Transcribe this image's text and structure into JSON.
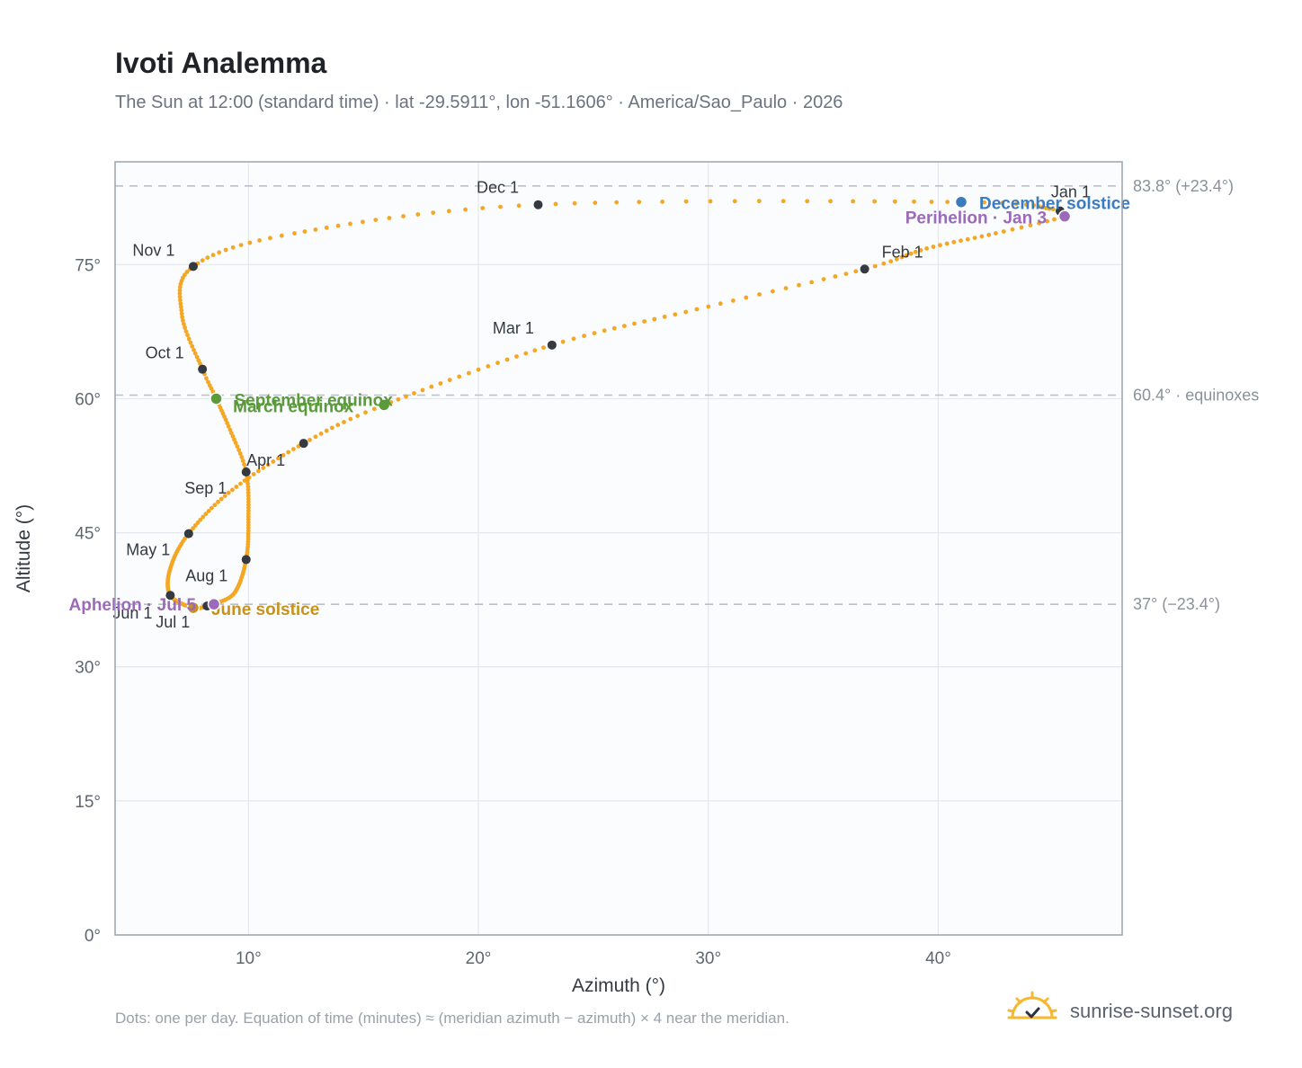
{
  "header": {
    "title": "Ivoti Analemma",
    "subtitle": "The Sun at 12:00 (standard time) · lat -29.5911°, lon -51.1606° · America/Sao_Paulo · 2026"
  },
  "footer": {
    "note": "Dots: one per day. Equation of time (minutes) ≈ (meridian azimuth − azimuth) × 4 near the meridian.",
    "brand": "sunrise-sunset.org",
    "brand_icon": "sun-check-icon"
  },
  "colors": {
    "curve": "#f5a623",
    "month_marker": "#343a40",
    "equinox": "#5a9a3a",
    "december_solstice": "#3b7bbf",
    "june_solstice": "#c8921a",
    "apsis": "#9b6ab8",
    "plot_bg": "#fafcfe",
    "grid": "#e3e8ee",
    "reference_line": "#b9c0c8"
  },
  "chart_data": {
    "type": "scatter",
    "xlabel": "Azimuth (°)",
    "ylabel": "Altitude (°)",
    "xlim": [
      4.2,
      48
    ],
    "ylim": [
      0,
      86.5
    ],
    "x_ticks": [
      10,
      20,
      30,
      40
    ],
    "x_tick_labels": [
      "10°",
      "20°",
      "30°",
      "40°"
    ],
    "y_ticks": [
      0,
      15,
      30,
      45,
      60,
      75
    ],
    "y_tick_labels": [
      "0°",
      "15°",
      "30°",
      "45°",
      "60°",
      "75°"
    ],
    "grid": true,
    "reference_lines": [
      {
        "y": 83.8,
        "label": "83.8° (+23.4°)"
      },
      {
        "y": 60.4,
        "label": "60.4° · equinoxes"
      },
      {
        "y": 37.0,
        "label": "37° (−23.4°)"
      }
    ],
    "daily_path_anchors": [
      {
        "day": 1,
        "az": 45.3,
        "alt": 81.0
      },
      {
        "day": 3,
        "az": 45.5,
        "alt": 80.4
      },
      {
        "day": 12,
        "az": 42.5,
        "alt": 78.5
      },
      {
        "day": 22,
        "az": 39.5,
        "alt": 76.8
      },
      {
        "day": 32,
        "az": 36.8,
        "alt": 74.5
      },
      {
        "day": 46,
        "az": 29.5,
        "alt": 70.0
      },
      {
        "day": 60,
        "az": 23.2,
        "alt": 66.0
      },
      {
        "day": 79,
        "az": 15.9,
        "alt": 59.3
      },
      {
        "day": 91,
        "az": 12.4,
        "alt": 55.0
      },
      {
        "day": 106,
        "az": 9.3,
        "alt": 49.8
      },
      {
        "day": 121,
        "az": 7.4,
        "alt": 44.9
      },
      {
        "day": 136,
        "az": 6.6,
        "alt": 41.0
      },
      {
        "day": 152,
        "az": 6.6,
        "alt": 38.0
      },
      {
        "day": 172,
        "az": 7.6,
        "alt": 36.6
      },
      {
        "day": 182,
        "az": 8.2,
        "alt": 36.8
      },
      {
        "day": 186,
        "az": 8.5,
        "alt": 37.0
      },
      {
        "day": 197,
        "az": 9.4,
        "alt": 38.3
      },
      {
        "day": 213,
        "az": 9.9,
        "alt": 42.0
      },
      {
        "day": 228,
        "az": 10.0,
        "alt": 46.5
      },
      {
        "day": 244,
        "az": 9.9,
        "alt": 51.8
      },
      {
        "day": 256,
        "az": 9.2,
        "alt": 56.5
      },
      {
        "day": 266,
        "az": 8.6,
        "alt": 60.0
      },
      {
        "day": 274,
        "az": 8.0,
        "alt": 63.3
      },
      {
        "day": 290,
        "az": 7.1,
        "alt": 69.5
      },
      {
        "day": 305,
        "az": 7.6,
        "alt": 74.8
      },
      {
        "day": 318,
        "az": 12.0,
        "alt": 78.5
      },
      {
        "day": 335,
        "az": 22.6,
        "alt": 81.7
      },
      {
        "day": 355,
        "az": 41.0,
        "alt": 82.0
      },
      {
        "day": 365,
        "az": 45.0,
        "alt": 81.2
      }
    ],
    "month_markers": [
      {
        "label": "Jan 1",
        "az": 45.3,
        "alt": 81.0,
        "lx": 12,
        "ly": -15,
        "anchor": "middle"
      },
      {
        "label": "Feb 1",
        "az": 36.8,
        "alt": 74.5,
        "lx": 42,
        "ly": -13,
        "anchor": "middle"
      },
      {
        "label": "Mar 1",
        "az": 23.2,
        "alt": 66.0,
        "lx": -43,
        "ly": -13,
        "anchor": "middle"
      },
      {
        "label": "Apr 1",
        "az": 12.4,
        "alt": 55.0,
        "lx": -42,
        "ly": 25,
        "anchor": "middle"
      },
      {
        "label": "May 1",
        "az": 7.4,
        "alt": 44.9,
        "lx": -45,
        "ly": 24,
        "anchor": "middle"
      },
      {
        "label": "Jun 1",
        "az": 6.6,
        "alt": 38.0,
        "lx": -42,
        "ly": 26,
        "anchor": "middle"
      },
      {
        "label": "Jul 1",
        "az": 8.2,
        "alt": 36.8,
        "lx": -38,
        "ly": 24,
        "anchor": "middle"
      },
      {
        "label": "Aug 1",
        "az": 9.9,
        "alt": 42.0,
        "lx": -44,
        "ly": 24,
        "anchor": "middle"
      },
      {
        "label": "Sep 1",
        "az": 9.9,
        "alt": 51.8,
        "lx": -45,
        "ly": 24,
        "anchor": "middle"
      },
      {
        "label": "Oct 1",
        "az": 8.0,
        "alt": 63.3,
        "lx": -42,
        "ly": -12,
        "anchor": "middle"
      },
      {
        "label": "Nov 1",
        "az": 7.6,
        "alt": 74.8,
        "lx": -44,
        "ly": -12,
        "anchor": "middle"
      },
      {
        "label": "Dec 1",
        "az": 22.6,
        "alt": 81.7,
        "lx": -45,
        "ly": -13,
        "anchor": "middle"
      }
    ],
    "events": [
      {
        "label": "March equinox",
        "az": 15.9,
        "alt": 59.3,
        "kind": "equinox",
        "lx": -168,
        "ly": 8,
        "anchor": "start"
      },
      {
        "label": "September equinox",
        "az": 8.6,
        "alt": 60.0,
        "kind": "equinox",
        "lx": 20,
        "ly": 8,
        "anchor": "start"
      },
      {
        "label": "December solstice",
        "az": 41.0,
        "alt": 82.0,
        "kind": "december_solstice",
        "lx": 20,
        "ly": 8,
        "anchor": "start"
      },
      {
        "label": "June solstice",
        "az": 7.6,
        "alt": 36.6,
        "kind": "june_solstice",
        "lx": 20,
        "ly": 8,
        "anchor": "start"
      },
      {
        "label": "Perihelion · Jan 3",
        "az": 45.5,
        "alt": 80.4,
        "kind": "apsis",
        "lx": -20,
        "ly": 8,
        "anchor": "end"
      },
      {
        "label": "Aphelion · Jul 5",
        "az": 8.5,
        "alt": 37.0,
        "kind": "apsis",
        "lx": -20,
        "ly": 7,
        "anchor": "end"
      }
    ]
  }
}
